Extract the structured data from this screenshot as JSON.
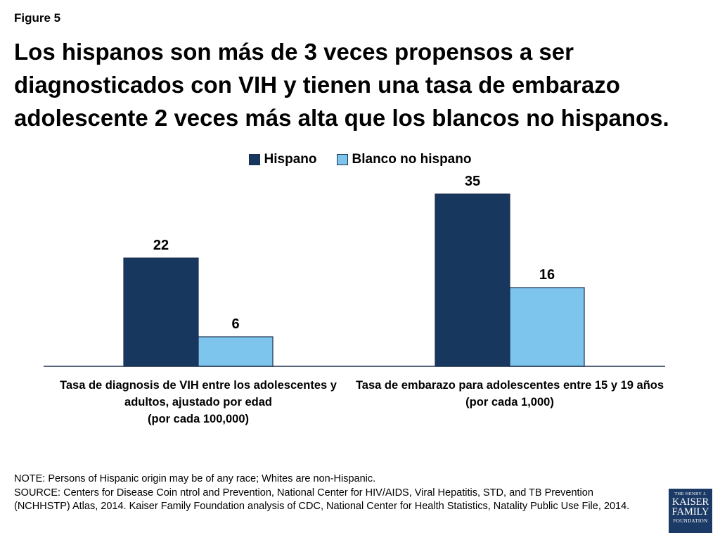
{
  "figure_label": "Figure 5",
  "title": "Los hispanos son más de 3 veces propensos a ser diagnosticados con VIH y tienen una tasa de embarazo adolescente 2 veces más alta que los blancos no hispanos.",
  "chart_data": {
    "type": "bar",
    "categories": [
      [
        "Tasa de diagnosis de VIH entre los adolescentes y adultos, ajustado por edad",
        "(por cada 100,000)"
      ],
      [
        "Tasa de embarazo para adolescentes entre 15 y 19 años",
        "(por cada 1,000)"
      ]
    ],
    "series": [
      {
        "name": "Hispano",
        "values": [
          22,
          35
        ],
        "color": "#17375e"
      },
      {
        "name": "Blanco no hispano",
        "values": [
          6,
          16
        ],
        "color": "#7ec5ee"
      }
    ],
    "ylim": [
      0,
      40
    ],
    "grid": false,
    "legend": "top-center",
    "data_labels": true
  },
  "notes": {
    "note": "NOTE: Persons of Hispanic origin may be of any race; Whites are non-Hispanic.",
    "source": "SOURCE: Centers for Disease Coin ntrol and Prevention, National Center for HIV/AIDS, Viral Hepatitis, STD, and TB Prevention (NCHHSTP) Atlas, 2014. Kaiser Family Foundation analysis of CDC, National Center for Health Statistics, Natality Public Use File, 2014."
  },
  "logo": {
    "line1": "THE HENRY J.",
    "line2": "KAISER",
    "line3": "FAMILY",
    "line4": "FOUNDATION"
  }
}
